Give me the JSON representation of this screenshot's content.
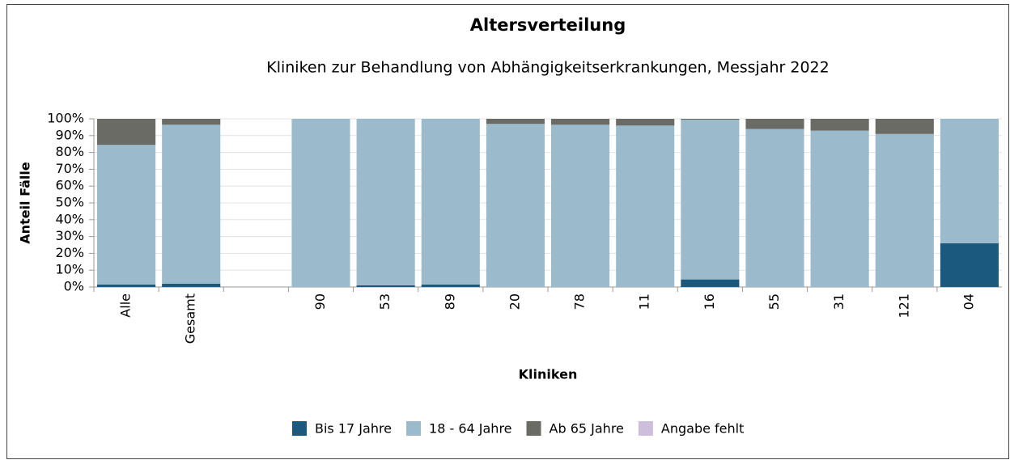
{
  "chart_data": {
    "type": "stacked_bar",
    "title": "Altersverteilung",
    "subtitle": "Kliniken zur Behandlung von Abhängigkeitserkrankungen, Messjahr 2022",
    "x_label": "Kliniken",
    "y_label": "Anteil Fälle",
    "categories": [
      "Alle",
      "Gesamt",
      null,
      "90",
      "53",
      "89",
      "20",
      "78",
      "11",
      "16",
      "55",
      "31",
      "121",
      "04"
    ],
    "series": [
      {
        "name": "Bis 17 Jahre",
        "color": "#1b5a7e",
        "values": [
          1.5,
          2,
          null,
          0,
          1,
          1.5,
          0,
          0,
          0,
          4.5,
          0,
          0,
          0,
          26
        ]
      },
      {
        "name": "18 - 64 Jahre",
        "color": "#9bbacb",
        "values": [
          83,
          94.5,
          null,
          100,
          99,
          98.5,
          97,
          96.5,
          96,
          95,
          94,
          93,
          91,
          74
        ]
      },
      {
        "name": "Ab 65 Jahre",
        "color": "#6b6b66",
        "values": [
          15.5,
          3.5,
          null,
          0,
          0,
          0,
          3,
          3.5,
          4,
          0.5,
          6,
          7,
          9,
          0
        ]
      },
      {
        "name": "Angabe fehlt",
        "color": "#cdbfdc",
        "values": [
          0,
          0,
          null,
          0,
          0,
          0,
          0,
          0,
          0,
          0,
          0,
          0,
          0,
          0
        ]
      }
    ],
    "ylim": [
      0,
      100
    ],
    "yticks": [
      {
        "value": 0,
        "label": "0%"
      },
      {
        "value": 10,
        "label": "10%"
      },
      {
        "value": 20,
        "label": "20%"
      },
      {
        "value": 30,
        "label": "30%"
      },
      {
        "value": 40,
        "label": "40%"
      },
      {
        "value": 50,
        "label": "50%"
      },
      {
        "value": 60,
        "label": "60%"
      },
      {
        "value": 70,
        "label": "70%"
      },
      {
        "value": 80,
        "label": "80%"
      },
      {
        "value": 90,
        "label": "90%"
      },
      {
        "value": 100,
        "label": "100%"
      }
    ],
    "grid": true,
    "legend": "bottom"
  }
}
